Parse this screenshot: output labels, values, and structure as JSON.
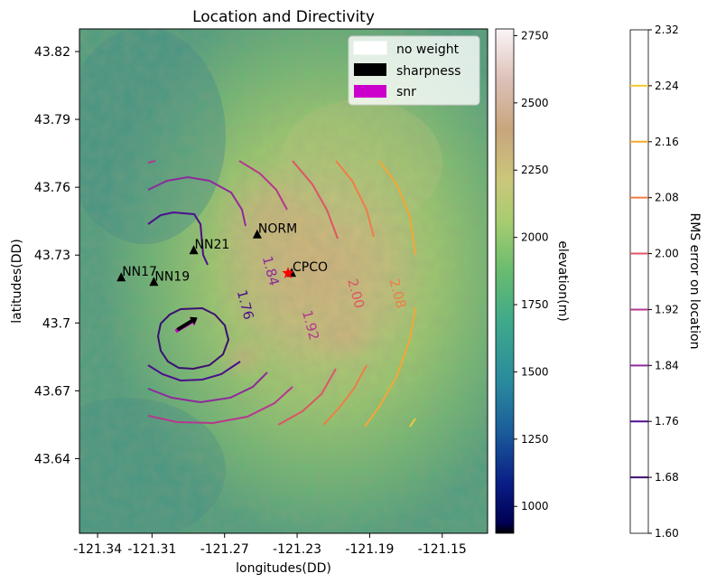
{
  "chart_data": {
    "type": "contour",
    "title": "Location and Directivity",
    "xlabel": "longitudes(DD)",
    "ylabel": "latitudes(DD)",
    "xlim": [
      -121.35,
      -121.125
    ],
    "ylim": [
      43.607,
      43.83
    ],
    "x_ticks": [
      -121.34,
      -121.31,
      -121.27,
      -121.23,
      -121.19,
      -121.15
    ],
    "x_tick_labels": [
      "-121.34",
      "-121.31",
      "-121.27",
      "-121.23",
      "-121.19",
      "-121.15"
    ],
    "y_ticks": [
      43.64,
      43.67,
      43.7,
      43.73,
      43.76,
      43.79,
      43.82
    ],
    "y_tick_labels": [
      "43.64",
      "43.67",
      "43.7",
      "43.73",
      "43.76",
      "43.79",
      "43.82"
    ],
    "legend": {
      "position": "top-right",
      "entries": [
        {
          "label": "no weight",
          "color": "#ffffff"
        },
        {
          "label": "sharpness",
          "color": "#000000"
        },
        {
          "label": "snr",
          "color": "#cc00cc"
        }
      ]
    },
    "stations": [
      {
        "name": "NORM",
        "lon": -121.252,
        "lat": 43.739
      },
      {
        "name": "NN21",
        "lon": -121.287,
        "lat": 43.732
      },
      {
        "name": "NN17",
        "lon": -121.327,
        "lat": 43.72
      },
      {
        "name": "NN19",
        "lon": -121.309,
        "lat": 43.718
      },
      {
        "name": "CPCO",
        "lon": -121.233,
        "lat": 43.722
      }
    ],
    "best_location": {
      "lon": -121.235,
      "lat": 43.722,
      "color": "#ff0000"
    },
    "directivity_arrows": [
      {
        "series": "snr",
        "color": "#cc00cc",
        "lon_from": -121.297,
        "lat_from": 43.6963,
        "lon_to": -121.285,
        "lat_to": 43.7019
      },
      {
        "series": "sharpness",
        "color": "#000000",
        "lon_from": -121.296,
        "lat_from": 43.697,
        "lon_to": -121.285,
        "lat_to": 43.7024
      }
    ],
    "contour_labels": [
      "1.76",
      "1.84",
      "1.92",
      "2.00",
      "2.08"
    ],
    "contour_label_positions": [
      {
        "text": "1.76",
        "lon": -121.261,
        "lat": 43.7075,
        "color": "#4b0f8c"
      },
      {
        "text": "1.84",
        "lon": -121.247,
        "lat": 43.7225,
        "color": "#8e2a9b"
      },
      {
        "text": "1.92",
        "lon": -121.225,
        "lat": 43.6985,
        "color": "#b5388e"
      },
      {
        "text": "2.00",
        "lon": -121.2,
        "lat": 43.7125,
        "color": "#dd5566"
      },
      {
        "text": "2.08",
        "lon": -121.177,
        "lat": 43.7125,
        "color": "#ef7d47"
      }
    ],
    "elevation_colorbar": {
      "label": "elevation(m)",
      "range": [
        900,
        2775
      ],
      "ticks": [
        1000,
        1250,
        1500,
        1750,
        2000,
        2250,
        2500,
        2750
      ],
      "tick_labels": [
        "1000",
        "1250",
        "1500",
        "1750",
        "2000",
        "2250",
        "2500",
        "2750"
      ]
    },
    "rms_colorbar": {
      "label": "RMS error on location",
      "range": [
        1.6,
        2.32
      ],
      "ticks": [
        1.6,
        1.68,
        1.76,
        1.84,
        1.92,
        2.0,
        2.08,
        2.16,
        2.24,
        2.32
      ],
      "tick_labels": [
        "1.60",
        "1.68",
        "1.76",
        "1.84",
        "1.92",
        "2.00",
        "2.08",
        "2.16",
        "2.24",
        "2.32"
      ],
      "levels": [
        {
          "value": 1.68,
          "color": "#3b0f70"
        },
        {
          "value": 1.76,
          "color": "#4b0f8c"
        },
        {
          "value": 1.84,
          "color": "#8e2a9b"
        },
        {
          "value": 1.92,
          "color": "#b5388e"
        },
        {
          "value": 2.0,
          "color": "#dd5566"
        },
        {
          "value": 2.08,
          "color": "#ef7d47"
        },
        {
          "value": 2.16,
          "color": "#f5a733"
        },
        {
          "value": 2.24,
          "color": "#f5c938"
        }
      ]
    },
    "grid": false
  }
}
